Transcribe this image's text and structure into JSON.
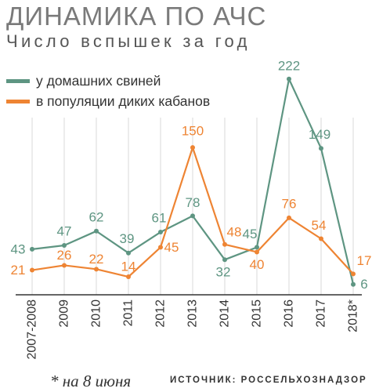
{
  "colors": {
    "green": "#5e9582",
    "orange": "#ee8433",
    "axis": "#333333",
    "grid": "#d9d9d9"
  },
  "chart_data": {
    "type": "line",
    "title": "ДИНАМИКА ПО АЧС",
    "subtitle": "Число вспышек за год",
    "categories": [
      "2007-2008",
      "2009",
      "2010",
      "2011",
      "2012",
      "2013",
      "2014",
      "2015",
      "2016",
      "2017",
      "2018*"
    ],
    "series": [
      {
        "name": "у домашних свиней",
        "color": "#5e9582",
        "values": [
          43,
          47,
          62,
          39,
          61,
          78,
          32,
          45,
          222,
          149,
          6
        ]
      },
      {
        "name": "в популяции диких кабанов",
        "color": "#ee8433",
        "values": [
          21,
          26,
          22,
          14,
          45,
          150,
          48,
          40,
          76,
          54,
          17
        ]
      }
    ],
    "ylim": [
      0,
      235
    ],
    "grid": true,
    "legend_position": "top-left",
    "footnote": "* на 8 июня",
    "source": "ИСТОЧНИК: РОССЕЛЬХОЗНАДЗОР"
  }
}
